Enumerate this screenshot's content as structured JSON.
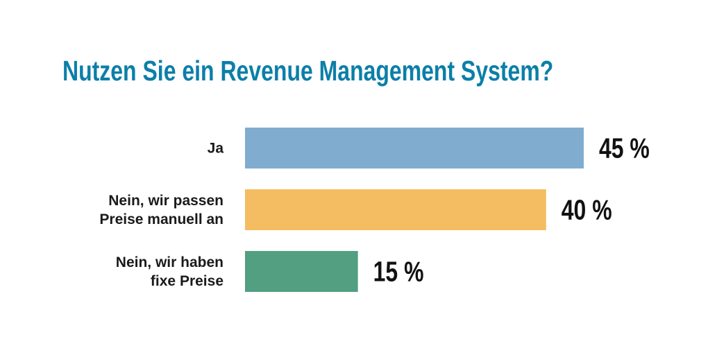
{
  "title": "Nutzen Sie ein Revenue Management System?",
  "chart_data": {
    "type": "bar",
    "orientation": "horizontal",
    "title": "Nutzen Sie ein Revenue Management System?",
    "categories": [
      [
        "Ja"
      ],
      [
        "Nein, wir passen",
        "Preise manuell an"
      ],
      [
        "Nein, wir haben",
        "fixe Preise"
      ]
    ],
    "values": [
      45,
      40,
      15
    ],
    "value_labels": [
      "45 %",
      "40 %",
      "15 %"
    ],
    "colors": [
      "#80adcf",
      "#f4bd62",
      "#529f82"
    ],
    "unit": "%",
    "xlim": [
      0,
      45
    ],
    "grid": false,
    "legend": "none"
  }
}
